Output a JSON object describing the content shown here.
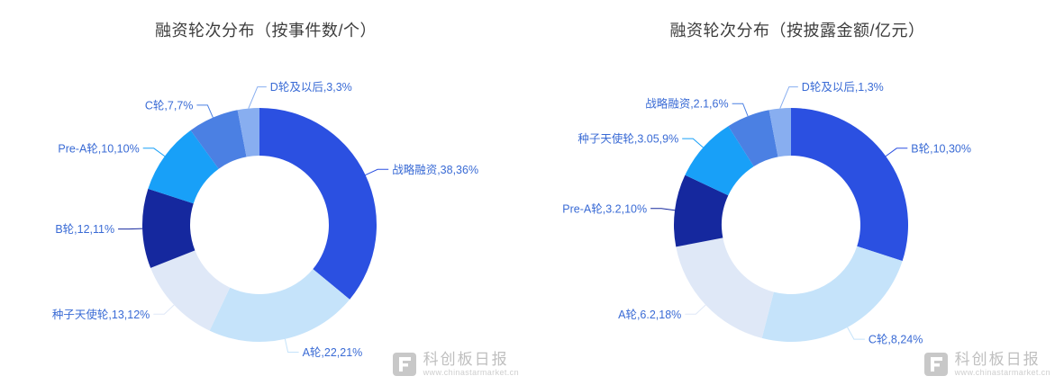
{
  "label_color": "#3A6BD5",
  "palette": [
    "#2B50E1",
    "#C5E3FA",
    "#DFE8F7",
    "#15289E",
    "#18A0F8",
    "#4B80E3",
    "#88AEF0"
  ],
  "watermark": {
    "brand": "科创板日报",
    "url": "www.chinastarmarket.cn"
  },
  "chart_data": [
    {
      "type": "pie",
      "title": "融资轮次分布（按事件数/个）",
      "donut": true,
      "start_angle": "top",
      "clockwise": true,
      "legend": "none",
      "segments": [
        {
          "label": "战略融资",
          "value": 38,
          "percent": 36,
          "text": "战略融资,38,36%"
        },
        {
          "label": "A轮",
          "value": 22,
          "percent": 21,
          "text": "A轮,22,21%"
        },
        {
          "label": "种子天使轮",
          "value": 13,
          "percent": 12,
          "text": "种子天使轮,13,12%"
        },
        {
          "label": "B轮",
          "value": 12,
          "percent": 11,
          "text": "B轮,12,11%"
        },
        {
          "label": "Pre-A轮",
          "value": 10,
          "percent": 10,
          "text": "Pre-A轮,10,10%"
        },
        {
          "label": "C轮",
          "value": 7,
          "percent": 7,
          "text": "C轮,7,7%"
        },
        {
          "label": "D轮及以后",
          "value": 3,
          "percent": 3,
          "text": "D轮及以后,3,3%",
          "label_side": "right-elbow"
        }
      ]
    },
    {
      "type": "pie",
      "title": "融资轮次分布（按披露金额/亿元）",
      "donut": true,
      "start_angle": "top",
      "clockwise": true,
      "legend": "none",
      "segments": [
        {
          "label": "B轮",
          "value": 10,
          "percent": 30,
          "text": "B轮,10,30%"
        },
        {
          "label": "C轮",
          "value": 8,
          "percent": 24,
          "text": "C轮,8,24%"
        },
        {
          "label": "A轮",
          "value": 6.2,
          "percent": 18,
          "text": "A轮,6.2,18%"
        },
        {
          "label": "Pre-A轮",
          "value": 3.2,
          "percent": 10,
          "text": "Pre-A轮,3.2,10%"
        },
        {
          "label": "种子天使轮",
          "value": 3.05,
          "percent": 9,
          "text": "种子天使轮,3.05,9%"
        },
        {
          "label": "战略融资",
          "value": 2.1,
          "percent": 6,
          "text": "战略融资,2.1,6%"
        },
        {
          "label": "D轮及以后",
          "value": 1,
          "percent": 3,
          "text": "D轮及以后,1,3%",
          "label_side": "right-elbow"
        }
      ]
    }
  ]
}
